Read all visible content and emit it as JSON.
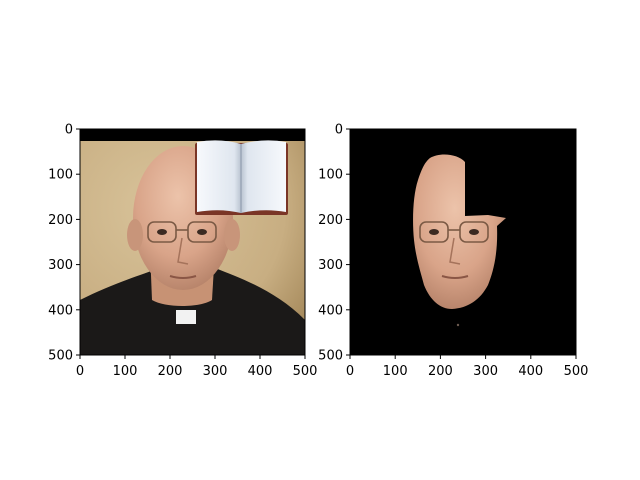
{
  "chart_data": [
    {
      "type": "image",
      "title": "",
      "xlabel": "",
      "ylabel": "",
      "xlim": [
        0,
        500
      ],
      "ylim": [
        500,
        0
      ],
      "x_ticks": [
        0,
        100,
        200,
        300,
        400,
        500
      ],
      "y_ticks": [
        0,
        100,
        200,
        300,
        400,
        500
      ],
      "content": "portrait photo with overlaid open-book sticker",
      "colors": {
        "background": "#cbb286",
        "suit": "#1b1918",
        "skin": "#d9a489",
        "collar": "#f2f2f2",
        "book_page": "#eef2f8",
        "book_cover": "#7a3526"
      }
    },
    {
      "type": "image",
      "title": "",
      "xlabel": "",
      "ylabel": "",
      "xlim": [
        0,
        500
      ],
      "ylim": [
        500,
        0
      ],
      "x_ticks": [
        0,
        100,
        200,
        300,
        400,
        500
      ],
      "y_ticks": [
        0,
        100,
        200,
        300,
        400,
        500
      ],
      "content": "segmented face mask on black background",
      "colors": {
        "background": "#000000",
        "skin": "#d9a489"
      }
    }
  ]
}
